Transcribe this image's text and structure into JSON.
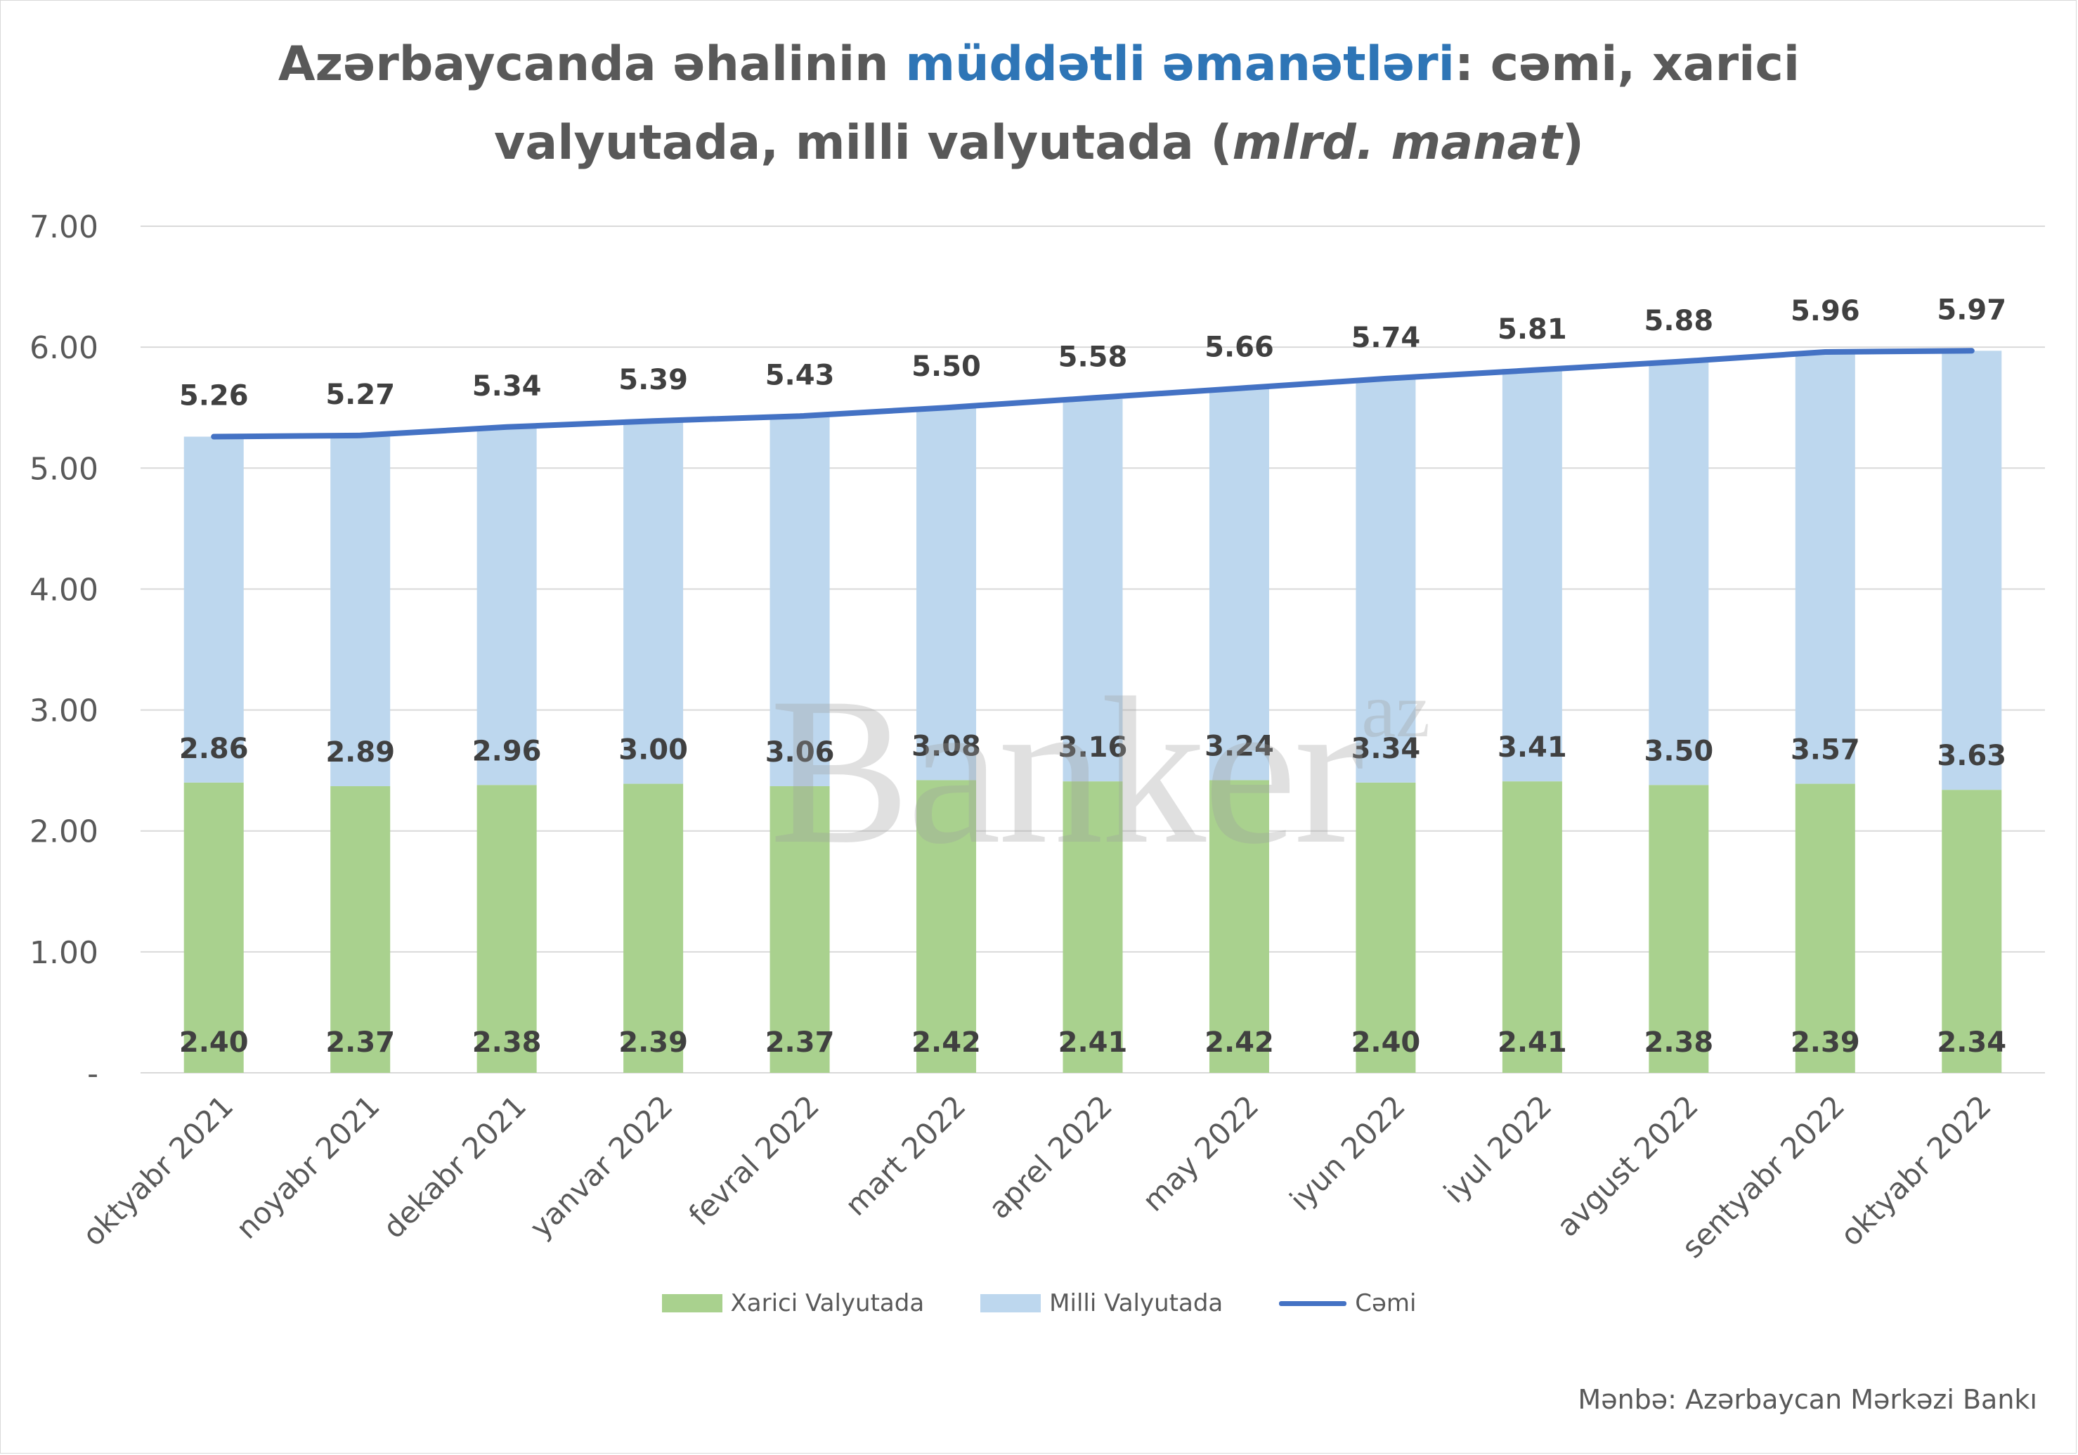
{
  "title": {
    "part1": "Azərbaycanda əhalinin ",
    "highlight": "müddətli əmanətləri",
    "part2": ": cəmi, xarici",
    "line2": "valyutada, milli valyutada (",
    "italic": "mlrd. manat",
    "close": ")"
  },
  "watermark": {
    "text": "Banker",
    "sup": "az"
  },
  "source": "Mənbə: Azərbaycan Mərkəzi Bankı",
  "colors": {
    "foreign": "#a9d18e",
    "national": "#bdd7ee",
    "total": "#4472c4",
    "title_highlight": "#2e75b6",
    "text": "#595959",
    "grid": "#d9d9d9"
  },
  "chart_data": {
    "type": "bar",
    "stacked": true,
    "categories": [
      "oktyabr 2021",
      "noyabr 2021",
      "dekabr 2021",
      "yanvar 2022",
      "fevral 2022",
      "mart 2022",
      "aprel 2022",
      "may 2022",
      "iyun 2022",
      "iyul 2022",
      "avgust 2022",
      "sentyabr 2022",
      "oktyabr 2022"
    ],
    "series": [
      {
        "name": "Xarici Valyutada",
        "type": "bar",
        "values": [
          2.4,
          2.37,
          2.38,
          2.39,
          2.37,
          2.42,
          2.41,
          2.42,
          2.4,
          2.41,
          2.38,
          2.39,
          2.34
        ],
        "labels": [
          "2.40",
          "2.37",
          "2.38",
          "2.39",
          "2.37",
          "2.42",
          "2.41",
          "2.42",
          "2.40",
          "2.41",
          "2.38",
          "2.39",
          "2.34"
        ]
      },
      {
        "name": "Milli Valyutada",
        "type": "bar",
        "values": [
          2.86,
          2.89,
          2.96,
          3.0,
          3.06,
          3.08,
          3.16,
          3.24,
          3.34,
          3.41,
          3.5,
          3.57,
          3.63
        ],
        "labels": [
          "2.86",
          "2.89",
          "2.96",
          "3.00",
          "3.06",
          "3.08",
          "3.16",
          "3.24",
          "3.34",
          "3.41",
          "3.50",
          "3.57",
          "3.63"
        ]
      },
      {
        "name": "Cəmi",
        "type": "line",
        "values": [
          5.26,
          5.27,
          5.34,
          5.39,
          5.43,
          5.5,
          5.58,
          5.66,
          5.74,
          5.81,
          5.88,
          5.96,
          5.97
        ],
        "labels": [
          "5.26",
          "5.27",
          "5.34",
          "5.39",
          "5.43",
          "5.50",
          "5.58",
          "5.66",
          "5.74",
          "5.81",
          "5.88",
          "5.96",
          "5.97"
        ]
      }
    ],
    "ylim": [
      0,
      7
    ],
    "yticks": [
      0,
      1,
      2,
      3,
      4,
      5,
      6,
      7
    ],
    "ytick_labels": [
      "-",
      "1.00",
      "2.00",
      "3.00",
      "4.00",
      "5.00",
      "6.00",
      "7.00"
    ],
    "grid": true,
    "legend_position": "bottom"
  }
}
